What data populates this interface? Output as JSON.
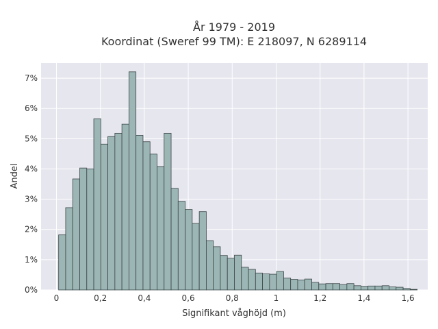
{
  "chart_data": {
    "type": "bar",
    "title_line1": "År 1979 - 2019",
    "title_line2": "Koordinat (Sweref 99 TM): E 218097, N 6289114",
    "xlabel": "Signifikant våghöjd (m)",
    "ylabel": "Andel",
    "x_ticks": [
      "0",
      "0,2",
      "0,4",
      "0,6",
      "0,8",
      "1",
      "1,2",
      "1,4",
      "1,6"
    ],
    "x_tick_values": [
      0,
      0.2,
      0.4,
      0.6,
      0.8,
      1.0,
      1.2,
      1.4,
      1.6
    ],
    "y_ticks": [
      "0%",
      "1%",
      "2%",
      "3%",
      "4%",
      "5%",
      "6%",
      "7%"
    ],
    "y_tick_values": [
      0,
      1,
      2,
      3,
      4,
      5,
      6,
      7
    ],
    "xlim": [
      -0.07,
      1.69
    ],
    "ylim": [
      0,
      7.5
    ],
    "grid": true,
    "bin_width": 0.032,
    "bin_start": 0.01,
    "values": [
      1.82,
      2.72,
      3.67,
      4.03,
      4.0,
      5.66,
      4.82,
      5.07,
      5.18,
      5.48,
      7.21,
      5.11,
      4.9,
      4.49,
      4.08,
      5.18,
      3.36,
      2.93,
      2.66,
      2.2,
      2.59,
      1.63,
      1.43,
      1.14,
      1.05,
      1.15,
      0.75,
      0.68,
      0.56,
      0.53,
      0.52,
      0.61,
      0.39,
      0.35,
      0.33,
      0.36,
      0.25,
      0.2,
      0.21,
      0.21,
      0.18,
      0.21,
      0.14,
      0.12,
      0.13,
      0.13,
      0.14,
      0.1,
      0.09,
      0.05,
      0.02
    ],
    "colors": {
      "bar_fill": "#9cb5b5",
      "bar_stroke": "#3a4545",
      "plot_bg": "#e6e6ef",
      "grid": "#ffffff",
      "text": "#333333"
    }
  }
}
